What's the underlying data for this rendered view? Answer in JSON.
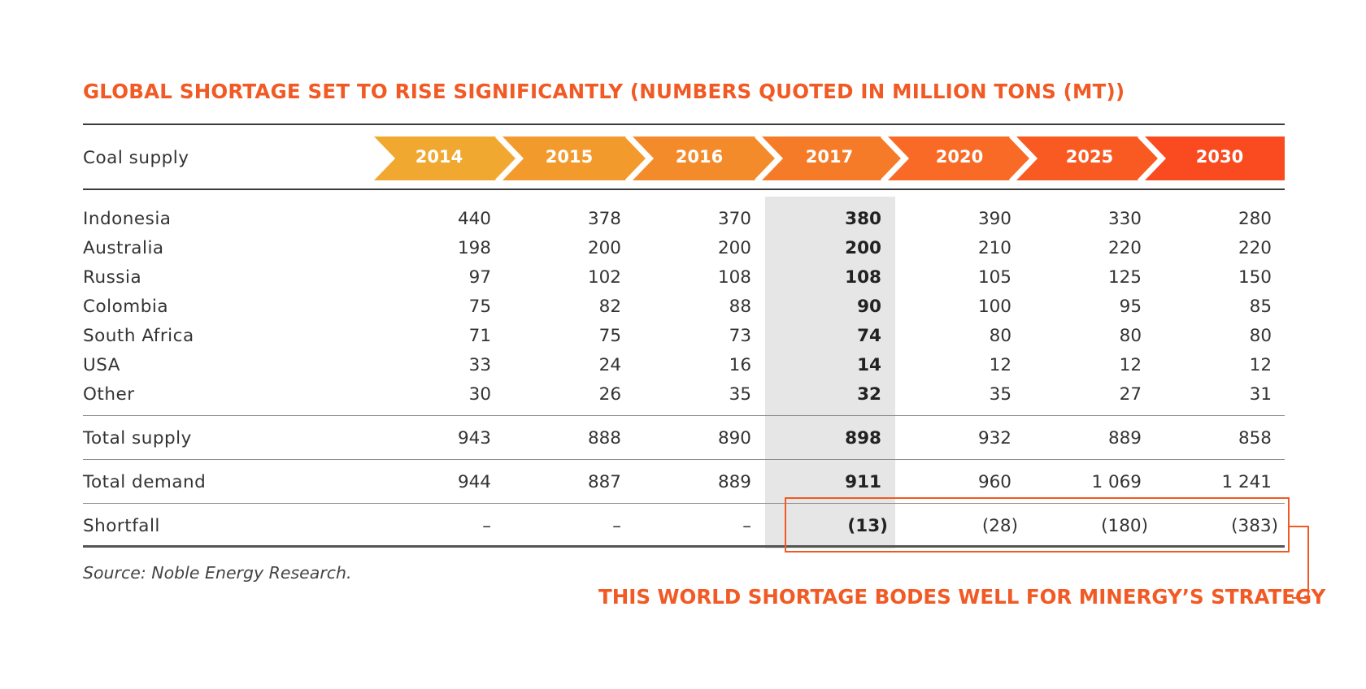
{
  "title": "GLOBAL SHORTAGE SET TO RISE SIGNIFICANTLY (NUMBERS QUOTED IN MILLION TONS (MT))",
  "header_label": "Coal supply",
  "years": [
    "2014",
    "2015",
    "2016",
    "2017",
    "2020",
    "2025",
    "2030"
  ],
  "highlight_year": "2017",
  "chevron_colors": [
    "#f0a830",
    "#f39a2c",
    "#f48b2a",
    "#f67b28",
    "#f86a25",
    "#f95a22",
    "#fa4a1f"
  ],
  "rows": [
    {
      "label": "Indonesia",
      "values": [
        "440",
        "378",
        "370",
        "380",
        "390",
        "330",
        "280"
      ]
    },
    {
      "label": "Australia",
      "values": [
        "198",
        "200",
        "200",
        "200",
        "210",
        "220",
        "220"
      ]
    },
    {
      "label": "Russia",
      "values": [
        "97",
        "102",
        "108",
        "108",
        "105",
        "125",
        "150"
      ]
    },
    {
      "label": "Colombia",
      "values": [
        "75",
        "82",
        "88",
        "90",
        "100",
        "95",
        "85"
      ]
    },
    {
      "label": "South Africa",
      "values": [
        "71",
        "75",
        "73",
        "74",
        "80",
        "80",
        "80"
      ]
    },
    {
      "label": "USA",
      "values": [
        "33",
        "24",
        "16",
        "14",
        "12",
        "12",
        "12"
      ]
    },
    {
      "label": "Other",
      "values": [
        "30",
        "26",
        "35",
        "32",
        "35",
        "27",
        "31"
      ]
    }
  ],
  "total_supply": {
    "label": "Total supply",
    "values": [
      "943",
      "888",
      "890",
      "898",
      "932",
      "889",
      "858"
    ]
  },
  "total_demand": {
    "label": "Total demand",
    "values": [
      "944",
      "887",
      "889",
      "911",
      "960",
      "1 069",
      "1 241"
    ]
  },
  "shortfall": {
    "label": "Shortfall",
    "values": [
      "–",
      "–",
      "–",
      "(13)",
      "(28)",
      "(180)",
      "(383)"
    ]
  },
  "source": "Source: Noble Energy Research.",
  "callout": "THIS WORLD SHORTAGE BODES WELL FOR MINERGY’S STRATEGY",
  "accent_color": "#f15a24"
}
